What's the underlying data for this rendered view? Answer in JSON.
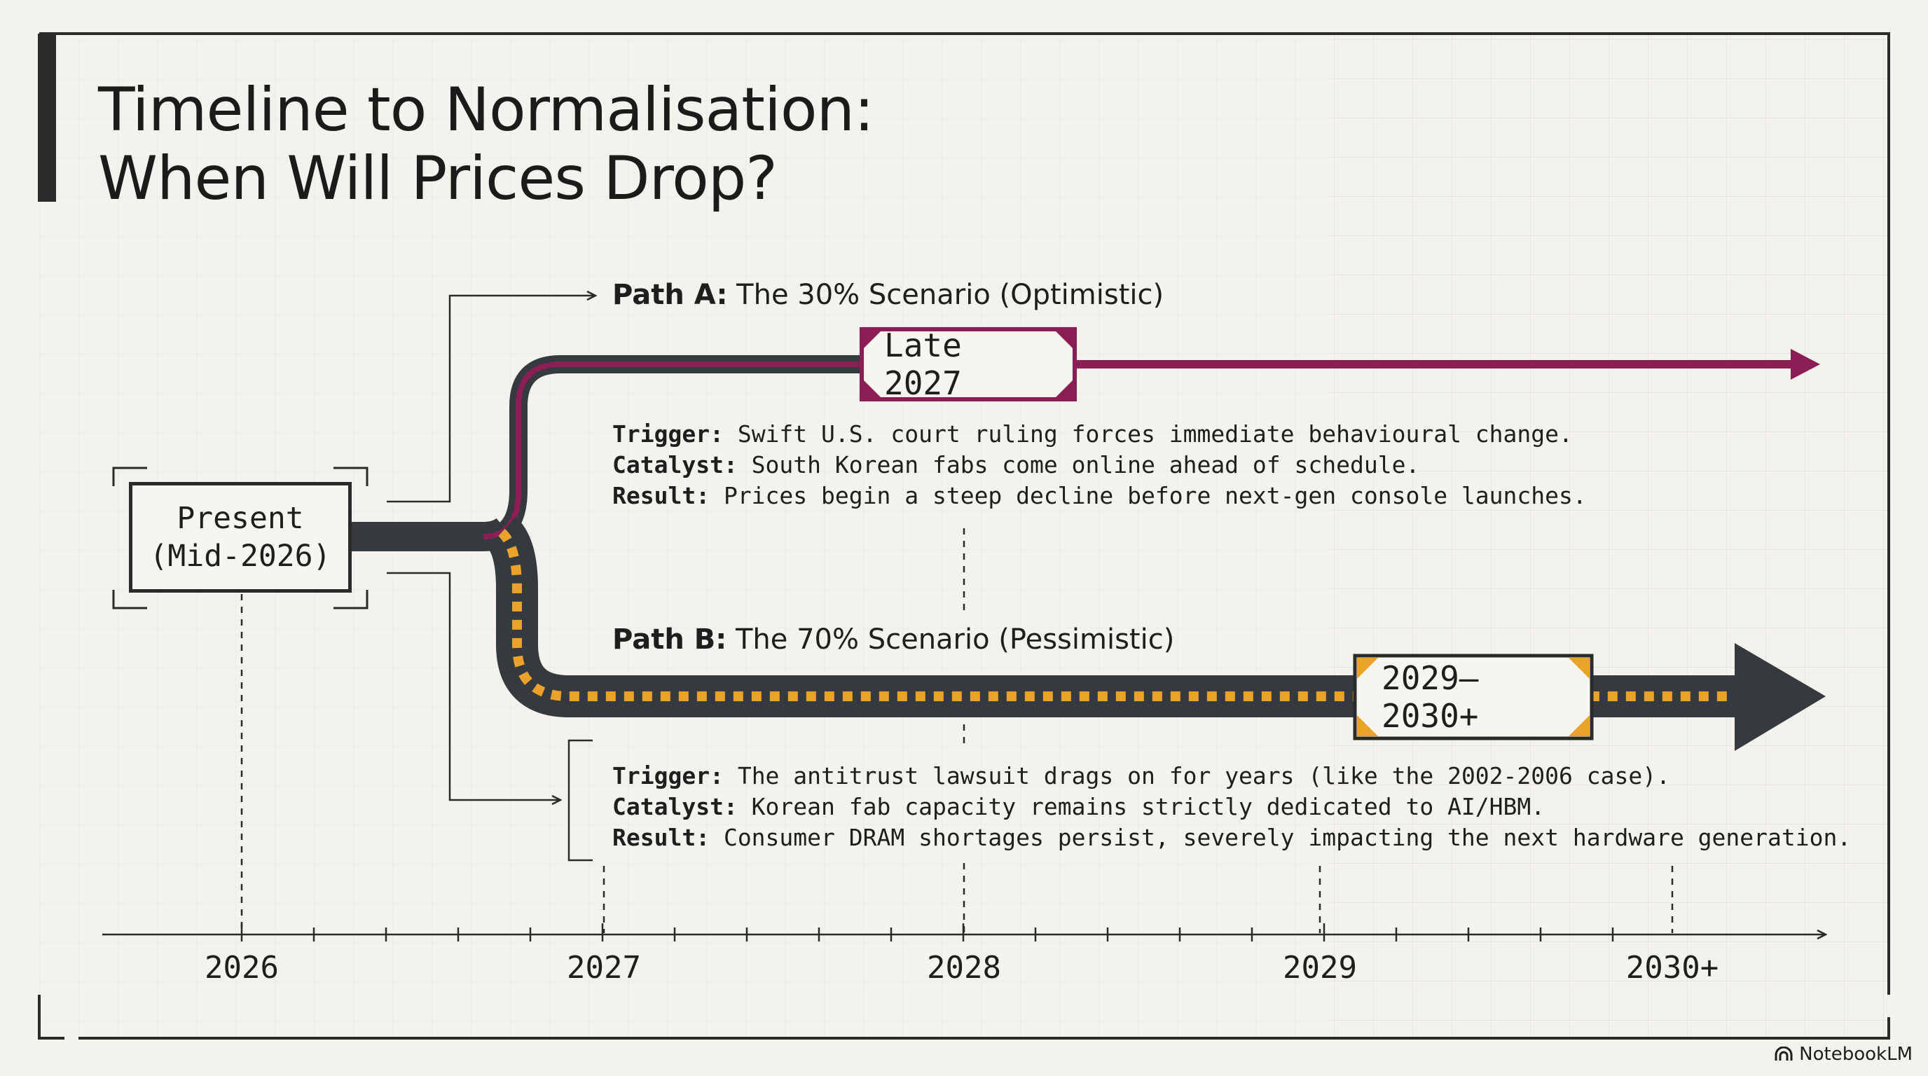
{
  "title": {
    "line1": "Timeline to Normalisation:",
    "line2": "When Will Prices Drop?"
  },
  "present": {
    "line1": "Present",
    "line2": "(Mid-2026)"
  },
  "path_a": {
    "label_bold": "Path A:",
    "label_rest": " The 30% Scenario (Optimistic)",
    "milestone": "Late 2027",
    "trigger_label": "Trigger:",
    "trigger": " Swift U.S. court ruling forces immediate behavioural change.",
    "catalyst_label": "Catalyst:",
    "catalyst": " South Korean fabs come online ahead of schedule.",
    "result_label": "Result:",
    "result": " Prices begin a steep decline before next-gen console launches."
  },
  "path_b": {
    "label_bold": "Path B:",
    "label_rest": " The 70% Scenario (Pessimistic)",
    "milestone": "2029–2030+",
    "trigger_label": "Trigger:",
    "trigger": " The antitrust lawsuit drags on for years (like the 2002-2006 case).",
    "catalyst_label": "Catalyst:",
    "catalyst": " Korean fab capacity remains strictly dedicated to AI/HBM.",
    "result_label": "Result:",
    "result": " Consumer DRAM shortages persist, severely impacting the next hardware generation."
  },
  "axis": {
    "years": [
      "2026",
      "2027",
      "2028",
      "2029",
      "2030+"
    ]
  },
  "brand": "NotebookLM",
  "colors": {
    "background": "#f4f2ec",
    "ink": "#2a2a2a",
    "path_a": "#8b1f55",
    "path_b_road": "#353a3f",
    "hazard_stripe": "#eba22a"
  }
}
